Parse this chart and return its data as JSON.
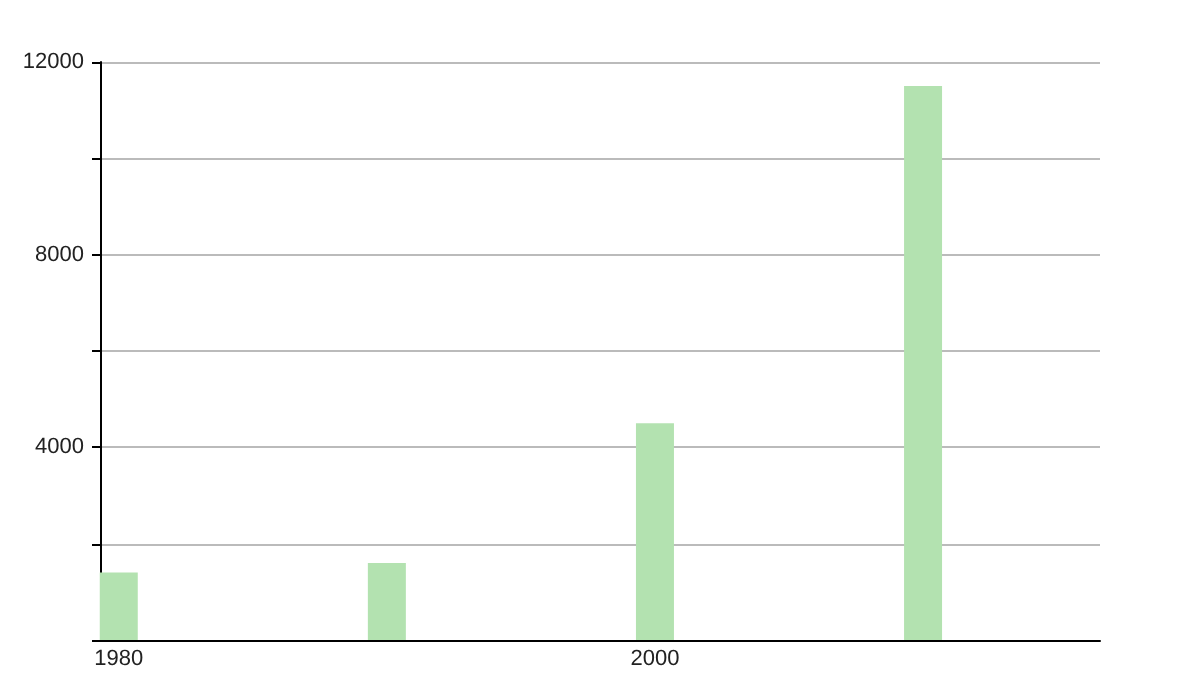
{
  "chart_data": {
    "type": "bar",
    "x": [
      1980,
      1990,
      2000,
      2010
    ],
    "values": [
      1400,
      1600,
      4500,
      11500
    ],
    "color": "#b3e2b0",
    "xlim": [
      1979.3,
      2016.6
    ],
    "xticks": [
      1980,
      2000
    ],
    "ylim": [
      0,
      12000
    ],
    "yticks": [
      {
        "value": 0,
        "label": null
      },
      {
        "value": 2000,
        "label": null
      },
      4000,
      {
        "value": 6000,
        "label": null
      },
      8000,
      {
        "value": 10000,
        "label": null
      },
      12000
    ],
    "grid": "y"
  }
}
